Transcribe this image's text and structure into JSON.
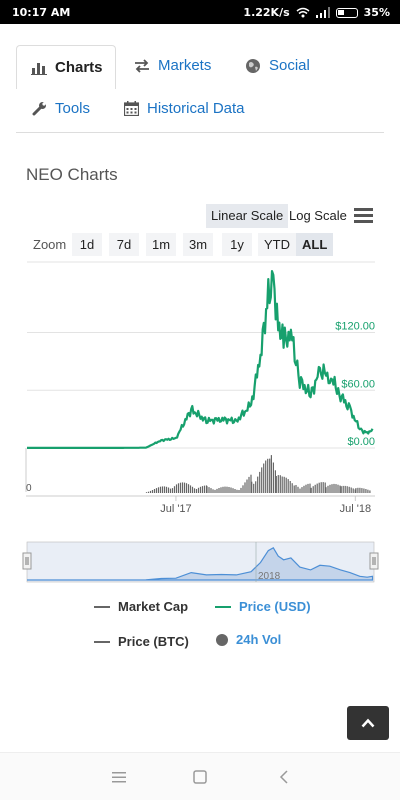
{
  "status_bar": {
    "time": "10:17 AM",
    "network_speed": "1.22K/s",
    "battery": "35%",
    "icons": [
      "wifi-icon",
      "signal-icon",
      "battery-icon"
    ]
  },
  "tabs": [
    {
      "label": "Charts",
      "icon": "bar-chart-icon",
      "active": true
    },
    {
      "label": "Markets",
      "icon": "exchange-arrows-icon",
      "active": false
    },
    {
      "label": "Social",
      "icon": "globe-icon",
      "active": false
    },
    {
      "label": "Tools",
      "icon": "wrench-icon",
      "active": false
    },
    {
      "label": "Historical Data",
      "icon": "calendar-icon",
      "active": false
    }
  ],
  "chart_title": "NEO Charts",
  "scale_options": {
    "linear": "Linear Scale",
    "log": "Log Scale",
    "selected": "Linear Scale"
  },
  "zoom": {
    "label": "Zoom",
    "options": [
      "1d",
      "7d",
      "1m",
      "3m",
      "1y",
      "YTD",
      "ALL"
    ],
    "selected": "ALL"
  },
  "colors": {
    "price_usd": "#17a06d",
    "volume": "#666666",
    "navigator_fill": "#c4d4ea",
    "navigator_line": "#4d8fd6",
    "link_blue": "#1b73c4"
  },
  "chart_data": {
    "type": "line",
    "title": "",
    "series": [
      {
        "name": "Price (USD)",
        "x": [
          "2016-09",
          "2016-12",
          "2017-03",
          "2017-05",
          "2017-06",
          "2017-07",
          "2017-08",
          "2017-09",
          "2017-10",
          "2017-11",
          "2017-12",
          "2017-12-20",
          "2018-01-05",
          "2018-01-15",
          "2018-01-25",
          "2018-02-05",
          "2018-02-20",
          "2018-03-10",
          "2018-04-01",
          "2018-04-20",
          "2018-05-10",
          "2018-06-01",
          "2018-06-20",
          "2018-07-10",
          "2018-07-25",
          "2018-08-05"
        ],
        "values": [
          0.1,
          0.1,
          0.1,
          0.3,
          8,
          10,
          40,
          28,
          30,
          28,
          45,
          95,
          160,
          175,
          130,
          110,
          120,
          70,
          55,
          80,
          75,
          55,
          40,
          20,
          15,
          20
        ]
      },
      {
        "name": "24h Vol",
        "x": [
          "2017-05",
          "2017-07",
          "2017-09",
          "2017-11",
          "2017-12",
          "2018-01-10",
          "2018-01-20",
          "2018-02",
          "2018-03",
          "2018-04",
          "2018-05",
          "2018-06",
          "2018-07",
          "2018-08"
        ],
        "values": [
          0.05,
          0.3,
          0.2,
          0.15,
          0.5,
          1.0,
          0.6,
          0.45,
          0.3,
          0.25,
          0.3,
          0.2,
          0.15,
          0.1
        ]
      }
    ],
    "y_ticks": [
      "$0.00",
      "$60.00",
      "$120.00"
    ],
    "y_tick_values": [
      0,
      60,
      120
    ],
    "ylim": [
      0,
      185
    ],
    "x_ticks": [
      "Jul '17",
      "Jul '18"
    ],
    "volume_axis_label": "0",
    "navigator_label": "2018",
    "grid": true
  },
  "legend": [
    {
      "label": "Market Cap",
      "marker": "line",
      "color": "#666666",
      "active": false
    },
    {
      "label": "Price (USD)",
      "marker": "line",
      "color": "#17a06d",
      "active": true
    },
    {
      "label": "Price (BTC)",
      "marker": "line",
      "color": "#666666",
      "active": false
    },
    {
      "label": "24h Vol",
      "marker": "dot",
      "color": "#666666",
      "active": true
    }
  ]
}
